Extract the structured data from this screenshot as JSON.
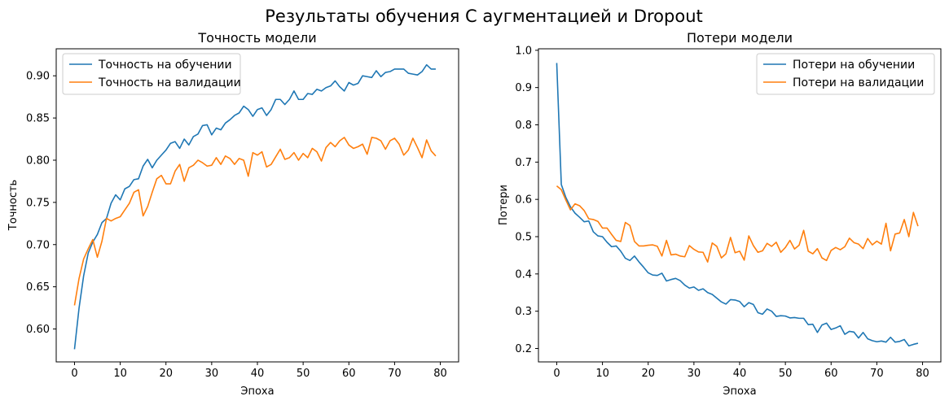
{
  "suptitle": "Результаты обучения С аугментацией и Dropout",
  "colors": {
    "train": "#1f77b4",
    "val": "#ff7f0e"
  },
  "chart_data": [
    {
      "type": "line",
      "title": "Точность модели",
      "xlabel": "Эпоха",
      "ylabel": "Точность",
      "xlim": [
        -4,
        84
      ],
      "ylim": [
        0.561,
        0.932
      ],
      "xticks": [
        0,
        10,
        20,
        30,
        40,
        50,
        60,
        70,
        80
      ],
      "yticks": [
        0.6,
        0.65,
        0.7,
        0.75,
        0.8,
        0.85,
        0.9
      ],
      "ytick_labels": [
        "0.60",
        "0.65",
        "0.70",
        "0.75",
        "0.80",
        "0.85",
        "0.90"
      ],
      "legend": "upper-left",
      "grid": false,
      "x": [
        0,
        1,
        2,
        3,
        4,
        5,
        6,
        7,
        8,
        9,
        10,
        11,
        12,
        13,
        14,
        15,
        16,
        17,
        18,
        19,
        20,
        21,
        22,
        23,
        24,
        25,
        26,
        27,
        28,
        29,
        30,
        31,
        32,
        33,
        34,
        35,
        36,
        37,
        38,
        39,
        40,
        41,
        42,
        43,
        44,
        45,
        46,
        47,
        48,
        49,
        50,
        51,
        52,
        53,
        54,
        55,
        56,
        57,
        58,
        59,
        60,
        61,
        62,
        63,
        64,
        65,
        66,
        67,
        68,
        69,
        70,
        71,
        72,
        73,
        74,
        75,
        76,
        77,
        78,
        79
      ],
      "series": [
        {
          "name": "Точность на обучении",
          "color_key": "train",
          "values": [
            0.576,
            0.625,
            0.663,
            0.69,
            0.703,
            0.712,
            0.726,
            0.731,
            0.749,
            0.759,
            0.753,
            0.766,
            0.769,
            0.777,
            0.778,
            0.793,
            0.801,
            0.791,
            0.8,
            0.806,
            0.812,
            0.82,
            0.822,
            0.814,
            0.825,
            0.818,
            0.828,
            0.831,
            0.841,
            0.842,
            0.83,
            0.838,
            0.836,
            0.844,
            0.848,
            0.853,
            0.856,
            0.864,
            0.86,
            0.852,
            0.86,
            0.862,
            0.853,
            0.86,
            0.872,
            0.872,
            0.866,
            0.872,
            0.882,
            0.872,
            0.872,
            0.879,
            0.878,
            0.884,
            0.882,
            0.886,
            0.888,
            0.894,
            0.887,
            0.882,
            0.892,
            0.889,
            0.891,
            0.9,
            0.899,
            0.898,
            0.906,
            0.899,
            0.904,
            0.905,
            0.908,
            0.908,
            0.908,
            0.903,
            0.902,
            0.901,
            0.905,
            0.913,
            0.908,
            0.908
          ]
        },
        {
          "name": "Точность на валидации",
          "color_key": "val",
          "values": [
            0.628,
            0.66,
            0.683,
            0.695,
            0.706,
            0.685,
            0.704,
            0.731,
            0.728,
            0.731,
            0.733,
            0.741,
            0.749,
            0.762,
            0.765,
            0.734,
            0.745,
            0.762,
            0.778,
            0.782,
            0.772,
            0.772,
            0.787,
            0.795,
            0.775,
            0.791,
            0.794,
            0.8,
            0.797,
            0.793,
            0.794,
            0.803,
            0.795,
            0.805,
            0.802,
            0.795,
            0.802,
            0.8,
            0.781,
            0.809,
            0.806,
            0.81,
            0.792,
            0.795,
            0.804,
            0.813,
            0.801,
            0.803,
            0.809,
            0.8,
            0.808,
            0.803,
            0.814,
            0.81,
            0.799,
            0.815,
            0.821,
            0.816,
            0.823,
            0.827,
            0.818,
            0.814,
            0.816,
            0.819,
            0.807,
            0.827,
            0.826,
            0.823,
            0.813,
            0.823,
            0.826,
            0.819,
            0.806,
            0.812,
            0.826,
            0.815,
            0.803,
            0.824,
            0.811,
            0.805
          ]
        }
      ]
    },
    {
      "type": "line",
      "title": "Потери модели",
      "xlabel": "Эпоха",
      "ylabel": "Потери",
      "xlim": [
        -4,
        84
      ],
      "ylim": [
        0.164,
        1.004
      ],
      "xticks": [
        0,
        10,
        20,
        30,
        40,
        50,
        60,
        70,
        80
      ],
      "yticks": [
        0.2,
        0.3,
        0.4,
        0.5,
        0.6,
        0.7,
        0.8,
        0.9,
        1.0
      ],
      "ytick_labels": [
        "0.2",
        "0.3",
        "0.4",
        "0.5",
        "0.6",
        "0.7",
        "0.8",
        "0.9",
        "1.0"
      ],
      "legend": "upper-right",
      "grid": false,
      "x": [
        0,
        1,
        2,
        3,
        4,
        5,
        6,
        7,
        8,
        9,
        10,
        11,
        12,
        13,
        14,
        15,
        16,
        17,
        18,
        19,
        20,
        21,
        22,
        23,
        24,
        25,
        26,
        27,
        28,
        29,
        30,
        31,
        32,
        33,
        34,
        35,
        36,
        37,
        38,
        39,
        40,
        41,
        42,
        43,
        44,
        45,
        46,
        47,
        48,
        49,
        50,
        51,
        52,
        53,
        54,
        55,
        56,
        57,
        58,
        59,
        60,
        61,
        62,
        63,
        64,
        65,
        66,
        67,
        68,
        69,
        70,
        71,
        72,
        73,
        74,
        75,
        76,
        77,
        78,
        79
      ],
      "series": [
        {
          "name": "Потери на обучении",
          "color_key": "train",
          "values": [
            0.966,
            0.64,
            0.605,
            0.58,
            0.563,
            0.552,
            0.54,
            0.542,
            0.513,
            0.502,
            0.5,
            0.485,
            0.473,
            0.475,
            0.461,
            0.442,
            0.436,
            0.448,
            0.432,
            0.418,
            0.403,
            0.397,
            0.396,
            0.402,
            0.381,
            0.385,
            0.388,
            0.382,
            0.37,
            0.362,
            0.365,
            0.356,
            0.36,
            0.35,
            0.345,
            0.335,
            0.325,
            0.319,
            0.331,
            0.33,
            0.326,
            0.312,
            0.323,
            0.318,
            0.296,
            0.292,
            0.306,
            0.3,
            0.286,
            0.288,
            0.287,
            0.282,
            0.283,
            0.281,
            0.281,
            0.264,
            0.265,
            0.243,
            0.263,
            0.268,
            0.251,
            0.255,
            0.261,
            0.238,
            0.246,
            0.244,
            0.228,
            0.243,
            0.226,
            0.221,
            0.218,
            0.22,
            0.217,
            0.23,
            0.217,
            0.219,
            0.224,
            0.207,
            0.211,
            0.214
          ]
        },
        {
          "name": "Потери на валидации",
          "color_key": "val",
          "values": [
            0.636,
            0.626,
            0.598,
            0.572,
            0.588,
            0.583,
            0.57,
            0.548,
            0.546,
            0.541,
            0.523,
            0.523,
            0.506,
            0.49,
            0.487,
            0.538,
            0.53,
            0.487,
            0.475,
            0.475,
            0.477,
            0.478,
            0.474,
            0.448,
            0.49,
            0.451,
            0.453,
            0.448,
            0.446,
            0.476,
            0.466,
            0.459,
            0.458,
            0.432,
            0.483,
            0.474,
            0.443,
            0.454,
            0.498,
            0.457,
            0.461,
            0.437,
            0.502,
            0.476,
            0.458,
            0.462,
            0.482,
            0.474,
            0.485,
            0.458,
            0.471,
            0.49,
            0.467,
            0.477,
            0.517,
            0.461,
            0.454,
            0.468,
            0.443,
            0.436,
            0.463,
            0.471,
            0.465,
            0.473,
            0.496,
            0.484,
            0.48,
            0.468,
            0.495,
            0.478,
            0.488,
            0.48,
            0.536,
            0.462,
            0.507,
            0.51,
            0.546,
            0.5,
            0.565,
            0.528
          ]
        }
      ]
    }
  ]
}
